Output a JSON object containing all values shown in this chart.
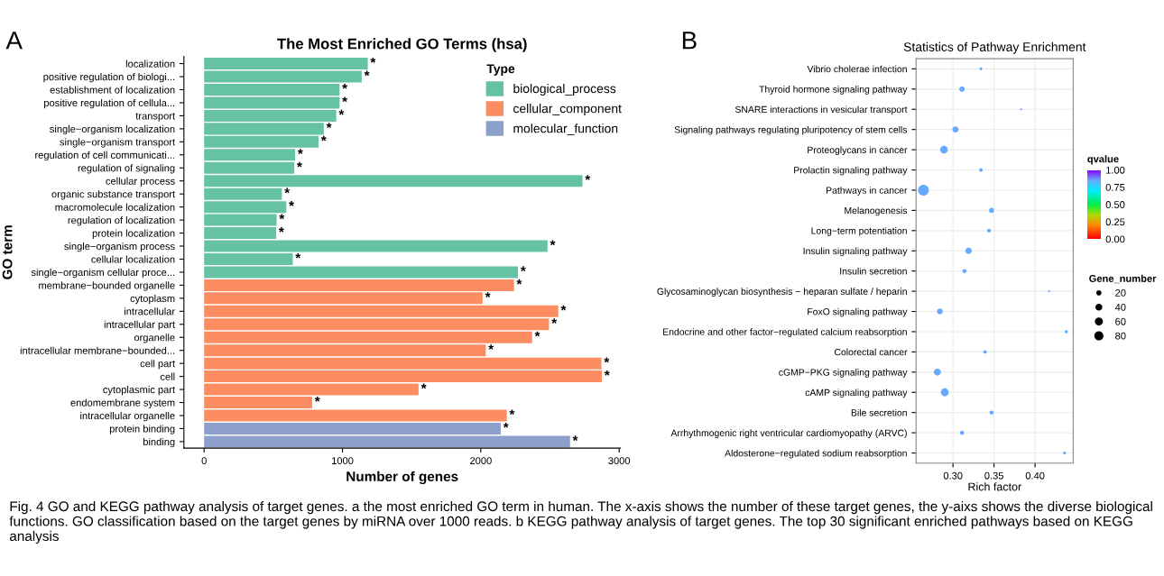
{
  "chart_data": [
    {
      "type": "bar",
      "orientation": "horizontal",
      "title": "The Most Enriched GO Terms (hsa)",
      "xlabel": "Number of genes",
      "ylabel": "GO term",
      "legend_title": "Type",
      "legend": "top right",
      "grid": false,
      "annotations": [
        "A",
        "Fig. 4 GO and KEGG pathway analysis of target genes. a the most enriched GO term in human. The x-axis shows the number of these target genes, the y-aixs shows the diverse biological functions. GO classification based on the target genes by miRNA over 1000 reads. b KEGG pathway analysis of target genes. The top 30 significant enriched pathways based on KEGG analysis"
      ],
      "categories": [
        "localization",
        "positive regulation of biologi...",
        "establishment of localization",
        "positive regulation of cellula...",
        "transport",
        "single−organism localization",
        "single−organism transport",
        "regulation of cell communicati...",
        "regulation of signaling",
        "cellular process",
        "organic substance transport",
        "macromolecule localization",
        "regulation of localization",
        "protein localization",
        "single−organism process",
        "cellular localization",
        "single−organism cellular proce...",
        "membrane−bounded organelle",
        "cytoplasm",
        "intracellular",
        "intracellular part",
        "organelle",
        "intracellular membrane−bounded...",
        "cell part",
        "cell",
        "cytoplasmic part",
        "endomembrane system",
        "intracellular organelle",
        "protein binding",
        "binding"
      ],
      "xlim": [
        -146,
        3009
      ],
      "xticks": [
        0,
        1000,
        2000,
        3000
      ],
      "series": [
        {
          "name": "biological_process",
          "color": "#66c2a5",
          "values": [
            1183,
            1139,
            979,
            979,
            955,
            865,
            827,
            658,
            652,
            2735,
            562,
            594,
            524,
            521,
            2482,
            641,
            2269,
            null,
            null,
            null,
            null,
            null,
            null,
            null,
            null,
            null,
            null,
            null,
            null,
            null
          ],
          "value_labels": [
            "*",
            "*",
            "*",
            "*",
            "*",
            "*",
            "*",
            "*",
            "*",
            "*",
            "*",
            "*",
            "*",
            "*",
            "*",
            "*",
            "*",
            null,
            null,
            null,
            null,
            null,
            null,
            null,
            null,
            null,
            null,
            null,
            null,
            null
          ]
        },
        {
          "name": "cellular_component",
          "color": "#fc8d62",
          "values": [
            null,
            null,
            null,
            null,
            null,
            null,
            null,
            null,
            null,
            null,
            null,
            null,
            null,
            null,
            null,
            null,
            null,
            2240,
            2013,
            2560,
            2493,
            2371,
            2036,
            2872,
            2875,
            1550,
            781,
            2188,
            null,
            null
          ],
          "value_labels": [
            null,
            null,
            null,
            null,
            null,
            null,
            null,
            null,
            null,
            null,
            null,
            null,
            null,
            null,
            null,
            null,
            null,
            "*",
            "*",
            "*",
            "*",
            "*",
            "*",
            "*",
            "*",
            "*",
            "*",
            "*",
            null,
            null
          ]
        },
        {
          "name": "molecular_function",
          "color": "#8da0cb",
          "values": [
            null,
            null,
            null,
            null,
            null,
            null,
            null,
            null,
            null,
            null,
            null,
            null,
            null,
            null,
            null,
            null,
            null,
            null,
            null,
            null,
            null,
            null,
            null,
            null,
            null,
            null,
            null,
            null,
            2144,
            2645
          ],
          "value_labels": [
            null,
            null,
            null,
            null,
            null,
            null,
            null,
            null,
            null,
            null,
            null,
            null,
            null,
            null,
            null,
            null,
            null,
            null,
            null,
            null,
            null,
            null,
            null,
            null,
            null,
            null,
            null,
            null,
            "*",
            "*"
          ]
        }
      ]
    },
    {
      "type": "bubble",
      "orientation": "horizontal",
      "title": "Statistics of Pathway Enrichment",
      "xlabel": "Rich factor",
      "clabel": "qvalue",
      "legend_title": "Gene_number",
      "grid": true,
      "annotations": [
        "B"
      ],
      "categories": [
        "Vibrio cholerae infection",
        "Thyroid hormone signaling pathway",
        "SNARE interactions in vesicular transport",
        "Signaling pathways regulating pluripotency of stem cells",
        "Proteoglycans in cancer",
        "Prolactin signaling pathway",
        "Pathways in cancer",
        "Melanogenesis",
        "Long−term potentiation",
        "Insulin signaling pathway",
        "Insulin secretion",
        "Glycosaminoglycan biosynthesis − heparan sulfate / heparin",
        "FoxO signaling pathway",
        "Endocrine and other factor−regulated calcium reabsorption",
        "Colorectal cancer",
        "cGMP−PKG signaling pathway",
        "cAMP signaling pathway",
        "Bile secretion",
        "Arrhythmogenic right ventricular cardiomyopathy (ARVC)",
        "Aldosterone−regulated sodium reabsorption"
      ],
      "values": [
        0.334,
        0.311,
        0.383,
        0.303,
        0.289,
        0.334,
        0.264,
        0.347,
        0.344,
        0.319,
        0.314,
        0.417,
        0.284,
        0.438,
        0.339,
        0.281,
        0.29,
        0.347,
        0.311,
        0.436
      ],
      "sizes": [
        11,
        38,
        5,
        48,
        75,
        16,
        150,
        33,
        19,
        52,
        22,
        5,
        42,
        13,
        16,
        63,
        80,
        22,
        22,
        11
      ],
      "size_legend": [
        20,
        40,
        60,
        80
      ],
      "cvalues": [
        0.85,
        0.85,
        0.85,
        0.85,
        0.85,
        0.85,
        0.85,
        0.85,
        0.85,
        0.85,
        0.85,
        0.85,
        0.85,
        0.85,
        0.85,
        0.85,
        0.85,
        0.85,
        0.85,
        0.85
      ],
      "clim": [
        0,
        1
      ],
      "cticks": [
        {
          "value": 0,
          "label": "0.00"
        },
        {
          "value": 0.25,
          "label": "0.25"
        },
        {
          "value": 0.5,
          "label": "0.50"
        },
        {
          "value": 0.75,
          "label": "0.75"
        },
        {
          "value": 1,
          "label": "1.00"
        }
      ],
      "xlim": [
        0.255,
        0.4465
      ],
      "xticks": [
        {
          "value": 0.3,
          "label": "0.30"
        },
        {
          "value": 0.35,
          "label": "0.35"
        },
        {
          "value": 0.4,
          "label": "0.40"
        }
      ]
    }
  ]
}
